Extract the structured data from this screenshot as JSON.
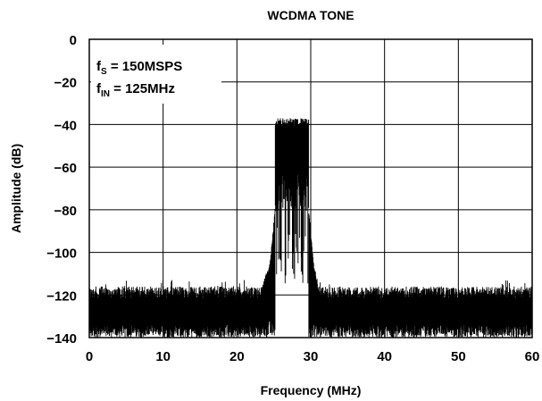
{
  "chart_data": {
    "type": "line",
    "title": "WCDMA TONE",
    "xlabel": "Frequency (MHz)",
    "ylabel": "Amplitude (dB)",
    "xlim": [
      0,
      60
    ],
    "ylim": [
      -140,
      0
    ],
    "xticks": [
      0,
      10,
      20,
      30,
      40,
      50,
      60
    ],
    "xtick_labels": [
      "0",
      "10",
      "20",
      "30",
      "40",
      "50",
      "60"
    ],
    "yticks": [
      0,
      -20,
      -40,
      -60,
      -80,
      -100,
      -120,
      -140
    ],
    "ytick_labels": [
      "0",
      "−20",
      "−40",
      "−60",
      "−80",
      "−100",
      "−120",
      "−140"
    ],
    "grid": true,
    "annotations": [
      {
        "main": "f",
        "sub": "S",
        "rest": " = 150MSPS"
      },
      {
        "main": "f",
        "sub": "IN",
        "rest": " = 125MHz"
      }
    ],
    "series": [
      {
        "color": "#000000",
        "noise_floor_top_db": -116,
        "noise_floor_bottom_db": -140,
        "band_start_mhz": 25.2,
        "band_end_mhz": 29.7,
        "band_top_db": -37,
        "band_bottom_db": -70,
        "band_min_db": -118,
        "skirt_points": [
          {
            "x": 23.5,
            "y": -115
          },
          {
            "x": 24.5,
            "y": -104
          },
          {
            "x": 25.2,
            "y": -78
          },
          {
            "x": 29.7,
            "y": -78
          },
          {
            "x": 30.4,
            "y": -104
          },
          {
            "x": 31.0,
            "y": -115
          }
        ]
      }
    ]
  }
}
